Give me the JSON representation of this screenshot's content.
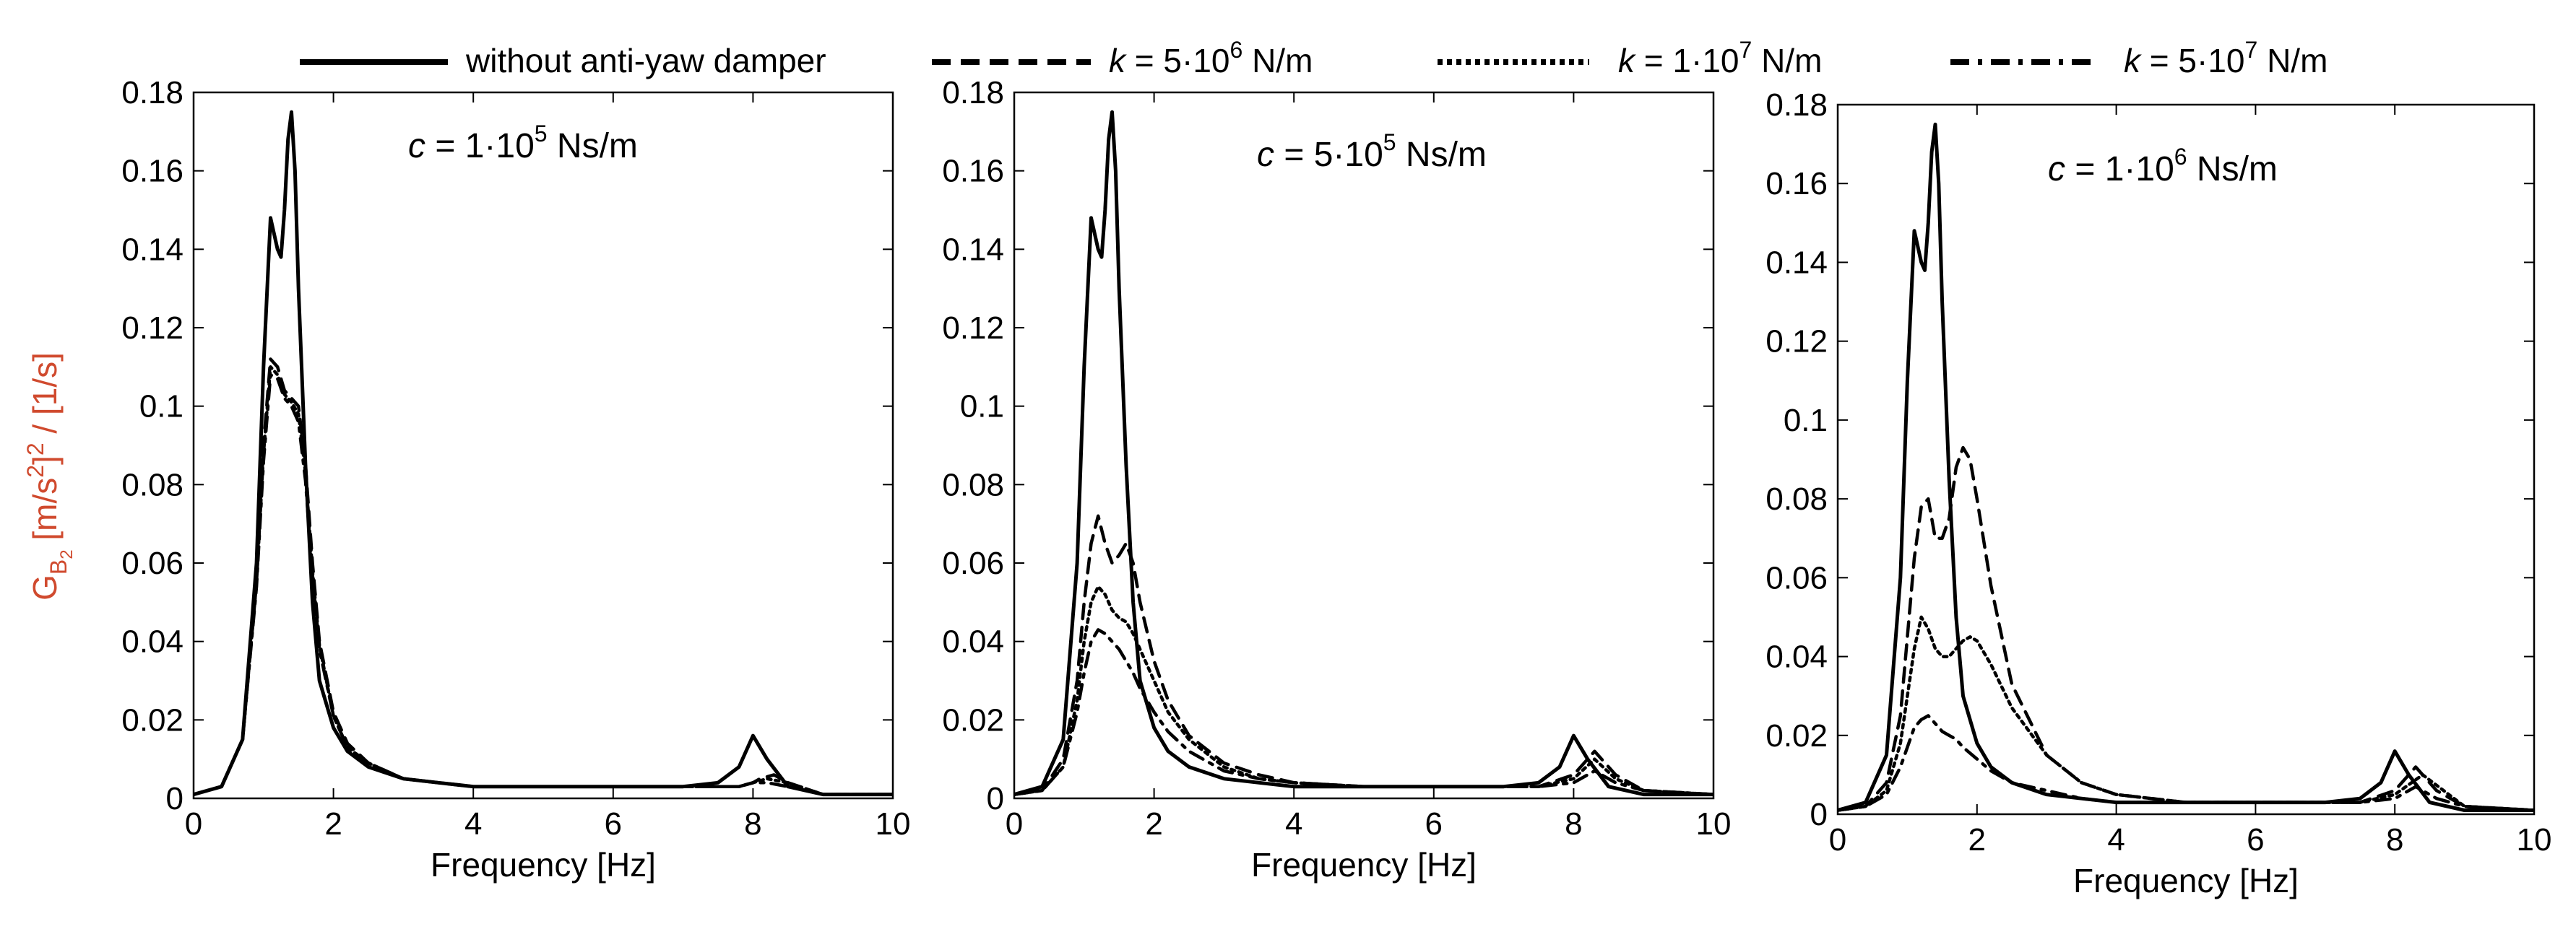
{
  "chart_data": {
    "type": "line",
    "legend": {
      "placement": "top",
      "entries": [
        {
          "label": "without anti-yaw damper",
          "style": "solid"
        },
        {
          "k_symbol": "k",
          "k_eq": " = 5·10",
          "k_exp": "6",
          "k_unit": " N/m",
          "style": "dashed"
        },
        {
          "k_symbol": "k",
          "k_eq": " = 1·10",
          "k_exp": "7",
          "k_unit": " N/m",
          "style": "dotted"
        },
        {
          "k_symbol": "k",
          "k_eq": " = 5·10",
          "k_exp": "7",
          "k_unit": " N/m",
          "style": "dashdot"
        }
      ]
    },
    "y_label": {
      "main": "G",
      "sub_B": "B",
      "sub_2": "2",
      "units_a": " [m/s",
      "units_exp": "2",
      "units_b": "]",
      "units_exp2": "2",
      "units_c": " / [1/s]"
    },
    "xlabel": "Frequency [Hz]",
    "xlim": [
      0,
      10
    ],
    "ylim": [
      0,
      0.18
    ],
    "xticks": [
      "0",
      "2",
      "4",
      "6",
      "8",
      "10"
    ],
    "yticks": [
      "0",
      "0.02",
      "0.04",
      "0.06",
      "0.08",
      "0.1",
      "0.12",
      "0.14",
      "0.16",
      "0.18"
    ],
    "panels": [
      {
        "annotation": {
          "c_symbol": "c",
          "c_eq": " = 1·10",
          "c_exp": "5",
          "c_unit": " Ns/m"
        },
        "series": [
          {
            "name": "without anti-yaw damper",
            "style": "solid",
            "x": [
              0,
              0.4,
              0.7,
              0.9,
              1.0,
              1.1,
              1.2,
              1.25,
              1.3,
              1.35,
              1.4,
              1.45,
              1.5,
              1.6,
              1.7,
              1.8,
              2.0,
              2.2,
              2.5,
              3.0,
              3.5,
              4.0,
              5.0,
              6.0,
              7.0,
              7.5,
              7.8,
              8.0,
              8.2,
              8.5,
              9.0,
              10.0
            ],
            "y": [
              0.001,
              0.003,
              0.015,
              0.06,
              0.11,
              0.148,
              0.14,
              0.138,
              0.15,
              0.168,
              0.175,
              0.16,
              0.13,
              0.085,
              0.05,
              0.03,
              0.018,
              0.012,
              0.008,
              0.005,
              0.004,
              0.003,
              0.003,
              0.003,
              0.003,
              0.004,
              0.008,
              0.016,
              0.01,
              0.003,
              0.001,
              0.001
            ]
          },
          {
            "name": "k = 5·10^6 N/m",
            "style": "dashed",
            "x": [
              0,
              0.4,
              0.7,
              0.9,
              1.0,
              1.1,
              1.2,
              1.3,
              1.4,
              1.5,
              1.6,
              1.7,
              1.8,
              2.0,
              2.2,
              2.5,
              3.0,
              3.5,
              4.0,
              5.0,
              6.0,
              7.0,
              7.8,
              8.0,
              8.1,
              8.3,
              8.5,
              9.0,
              10.0
            ],
            "y": [
              0.001,
              0.003,
              0.015,
              0.055,
              0.09,
              0.112,
              0.11,
              0.104,
              0.102,
              0.1,
              0.085,
              0.06,
              0.04,
              0.022,
              0.014,
              0.009,
              0.005,
              0.004,
              0.003,
              0.003,
              0.003,
              0.003,
              0.003,
              0.004,
              0.005,
              0.006,
              0.004,
              0.001,
              0.001
            ]
          },
          {
            "name": "k = 1·10^7 N/m",
            "style": "dotted",
            "x": [
              0,
              0.4,
              0.7,
              0.9,
              1.0,
              1.1,
              1.2,
              1.3,
              1.4,
              1.5,
              1.6,
              1.7,
              1.8,
              2.0,
              2.2,
              2.5,
              3.0,
              3.5,
              4.0,
              5.0,
              6.0,
              7.0,
              7.8,
              8.0,
              8.2,
              8.5,
              9.0,
              10.0
            ],
            "y": [
              0.001,
              0.003,
              0.015,
              0.055,
              0.088,
              0.11,
              0.108,
              0.103,
              0.101,
              0.098,
              0.083,
              0.058,
              0.039,
              0.021,
              0.013,
              0.009,
              0.005,
              0.004,
              0.003,
              0.003,
              0.003,
              0.003,
              0.003,
              0.004,
              0.005,
              0.004,
              0.001,
              0.001
            ]
          },
          {
            "name": "k = 5·10^7 N/m",
            "style": "dashdot",
            "x": [
              0,
              0.4,
              0.7,
              0.9,
              1.0,
              1.1,
              1.2,
              1.3,
              1.4,
              1.5,
              1.6,
              1.7,
              1.8,
              2.0,
              2.2,
              2.5,
              3.0,
              3.5,
              4.0,
              5.0,
              6.0,
              7.0,
              7.8,
              8.0,
              8.2,
              8.5,
              9.0,
              10.0
            ],
            "y": [
              0.001,
              0.003,
              0.015,
              0.054,
              0.086,
              0.108,
              0.107,
              0.102,
              0.1,
              0.096,
              0.081,
              0.057,
              0.038,
              0.021,
              0.013,
              0.009,
              0.005,
              0.004,
              0.003,
              0.003,
              0.003,
              0.003,
              0.003,
              0.004,
              0.004,
              0.003,
              0.001,
              0.001
            ]
          }
        ]
      },
      {
        "annotation": {
          "c_symbol": "c",
          "c_eq": " = 5·10",
          "c_exp": "5",
          "c_unit": " Ns/m"
        },
        "series": [
          {
            "name": "without anti-yaw damper",
            "style": "solid",
            "x": [
              0,
              0.4,
              0.7,
              0.9,
              1.0,
              1.1,
              1.2,
              1.25,
              1.3,
              1.35,
              1.4,
              1.45,
              1.5,
              1.6,
              1.7,
              1.8,
              2.0,
              2.2,
              2.5,
              3.0,
              3.5,
              4.0,
              5.0,
              6.0,
              7.0,
              7.5,
              7.8,
              8.0,
              8.2,
              8.5,
              9.0,
              10.0
            ],
            "y": [
              0.001,
              0.003,
              0.015,
              0.06,
              0.11,
              0.148,
              0.14,
              0.138,
              0.15,
              0.168,
              0.175,
              0.16,
              0.13,
              0.085,
              0.05,
              0.03,
              0.018,
              0.012,
              0.008,
              0.005,
              0.004,
              0.003,
              0.003,
              0.003,
              0.003,
              0.004,
              0.008,
              0.016,
              0.01,
              0.003,
              0.001,
              0.001
            ]
          },
          {
            "name": "k = 5·10^6 N/m",
            "style": "dashed",
            "x": [
              0,
              0.4,
              0.7,
              0.9,
              1.0,
              1.1,
              1.2,
              1.3,
              1.4,
              1.5,
              1.6,
              1.7,
              1.8,
              2.0,
              2.2,
              2.5,
              3.0,
              3.5,
              4.0,
              5.0,
              6.0,
              7.0,
              7.5,
              8.0,
              8.3,
              8.6,
              9.0,
              10.0
            ],
            "y": [
              0.001,
              0.002,
              0.01,
              0.03,
              0.05,
              0.065,
              0.072,
              0.065,
              0.06,
              0.062,
              0.065,
              0.06,
              0.05,
              0.035,
              0.025,
              0.016,
              0.009,
              0.006,
              0.004,
              0.003,
              0.003,
              0.003,
              0.003,
              0.006,
              0.012,
              0.006,
              0.002,
              0.001
            ]
          },
          {
            "name": "k = 1·10^7 N/m",
            "style": "dotted",
            "x": [
              0,
              0.4,
              0.7,
              0.9,
              1.0,
              1.1,
              1.2,
              1.3,
              1.4,
              1.5,
              1.6,
              1.7,
              1.8,
              2.0,
              2.2,
              2.5,
              3.0,
              3.5,
              4.0,
              5.0,
              6.0,
              7.0,
              7.5,
              8.0,
              8.3,
              8.6,
              9.0,
              10.0
            ],
            "y": [
              0.001,
              0.002,
              0.008,
              0.025,
              0.04,
              0.05,
              0.054,
              0.052,
              0.048,
              0.046,
              0.045,
              0.042,
              0.038,
              0.03,
              0.022,
              0.015,
              0.008,
              0.005,
              0.004,
              0.003,
              0.003,
              0.003,
              0.003,
              0.005,
              0.01,
              0.005,
              0.002,
              0.001
            ]
          },
          {
            "name": "k = 5·10^7 N/m",
            "style": "dashdot",
            "x": [
              0,
              0.4,
              0.7,
              0.9,
              1.0,
              1.1,
              1.2,
              1.3,
              1.4,
              1.5,
              1.6,
              1.7,
              1.8,
              2.0,
              2.2,
              2.5,
              3.0,
              3.5,
              4.0,
              5.0,
              6.0,
              7.0,
              7.5,
              8.0,
              8.3,
              8.6,
              9.0,
              10.0
            ],
            "y": [
              0.001,
              0.002,
              0.008,
              0.022,
              0.032,
              0.04,
              0.043,
              0.042,
              0.04,
              0.038,
              0.035,
              0.032,
              0.028,
              0.022,
              0.017,
              0.012,
              0.007,
              0.005,
              0.004,
              0.003,
              0.003,
              0.003,
              0.003,
              0.004,
              0.007,
              0.004,
              0.002,
              0.001
            ]
          }
        ]
      },
      {
        "annotation": {
          "c_symbol": "c",
          "c_eq": " = 1·10",
          "c_exp": "6",
          "c_unit": " Ns/m"
        },
        "series": [
          {
            "name": "without anti-yaw damper",
            "style": "solid",
            "x": [
              0,
              0.4,
              0.7,
              0.9,
              1.0,
              1.1,
              1.2,
              1.25,
              1.3,
              1.35,
              1.4,
              1.45,
              1.5,
              1.6,
              1.7,
              1.8,
              2.0,
              2.2,
              2.5,
              3.0,
              3.5,
              4.0,
              5.0,
              6.0,
              7.0,
              7.5,
              7.8,
              8.0,
              8.2,
              8.5,
              9.0,
              10.0
            ],
            "y": [
              0.001,
              0.003,
              0.015,
              0.06,
              0.11,
              0.148,
              0.14,
              0.138,
              0.15,
              0.168,
              0.175,
              0.16,
              0.13,
              0.085,
              0.05,
              0.03,
              0.018,
              0.012,
              0.008,
              0.005,
              0.004,
              0.003,
              0.003,
              0.003,
              0.003,
              0.004,
              0.008,
              0.016,
              0.01,
              0.003,
              0.001,
              0.001
            ]
          },
          {
            "name": "k = 5·10^6 N/m",
            "style": "dashed",
            "x": [
              0,
              0.4,
              0.7,
              0.9,
              1.0,
              1.1,
              1.2,
              1.3,
              1.4,
              1.5,
              1.6,
              1.7,
              1.8,
              1.9,
              2.0,
              2.2,
              2.5,
              3.0,
              3.5,
              4.0,
              5.0,
              6.0,
              7.0,
              7.5,
              8.0,
              8.3,
              8.6,
              9.0,
              10.0
            ],
            "y": [
              0.001,
              0.002,
              0.008,
              0.025,
              0.045,
              0.065,
              0.078,
              0.08,
              0.07,
              0.07,
              0.075,
              0.088,
              0.093,
              0.09,
              0.08,
              0.058,
              0.033,
              0.015,
              0.008,
              0.005,
              0.003,
              0.003,
              0.003,
              0.003,
              0.006,
              0.012,
              0.006,
              0.002,
              0.001
            ]
          },
          {
            "name": "k = 1·10^7 N/m",
            "style": "dotted",
            "x": [
              0,
              0.4,
              0.7,
              0.9,
              1.0,
              1.1,
              1.2,
              1.3,
              1.4,
              1.5,
              1.6,
              1.7,
              1.8,
              1.9,
              2.0,
              2.2,
              2.5,
              3.0,
              3.5,
              4.0,
              5.0,
              6.0,
              7.0,
              7.5,
              8.0,
              8.4,
              8.7,
              9.0,
              10.0
            ],
            "y": [
              0.001,
              0.002,
              0.006,
              0.018,
              0.03,
              0.042,
              0.05,
              0.047,
              0.042,
              0.04,
              0.04,
              0.042,
              0.044,
              0.045,
              0.044,
              0.038,
              0.027,
              0.015,
              0.008,
              0.005,
              0.003,
              0.003,
              0.003,
              0.003,
              0.005,
              0.01,
              0.006,
              0.002,
              0.001
            ]
          },
          {
            "name": "k = 5·10^7 N/m",
            "style": "dashdot",
            "x": [
              0,
              0.4,
              0.7,
              0.9,
              1.0,
              1.1,
              1.2,
              1.3,
              1.4,
              1.5,
              1.6,
              1.7,
              1.8,
              2.0,
              2.2,
              2.5,
              3.0,
              3.5,
              4.0,
              5.0,
              6.0,
              7.0,
              7.5,
              8.0,
              8.3,
              8.6,
              9.0,
              10.0
            ],
            "y": [
              0.001,
              0.002,
              0.005,
              0.012,
              0.017,
              0.022,
              0.024,
              0.025,
              0.023,
              0.021,
              0.02,
              0.019,
              0.017,
              0.014,
              0.011,
              0.008,
              0.006,
              0.004,
              0.003,
              0.003,
              0.003,
              0.003,
              0.003,
              0.004,
              0.007,
              0.004,
              0.002,
              0.001
            ]
          }
        ]
      }
    ]
  }
}
